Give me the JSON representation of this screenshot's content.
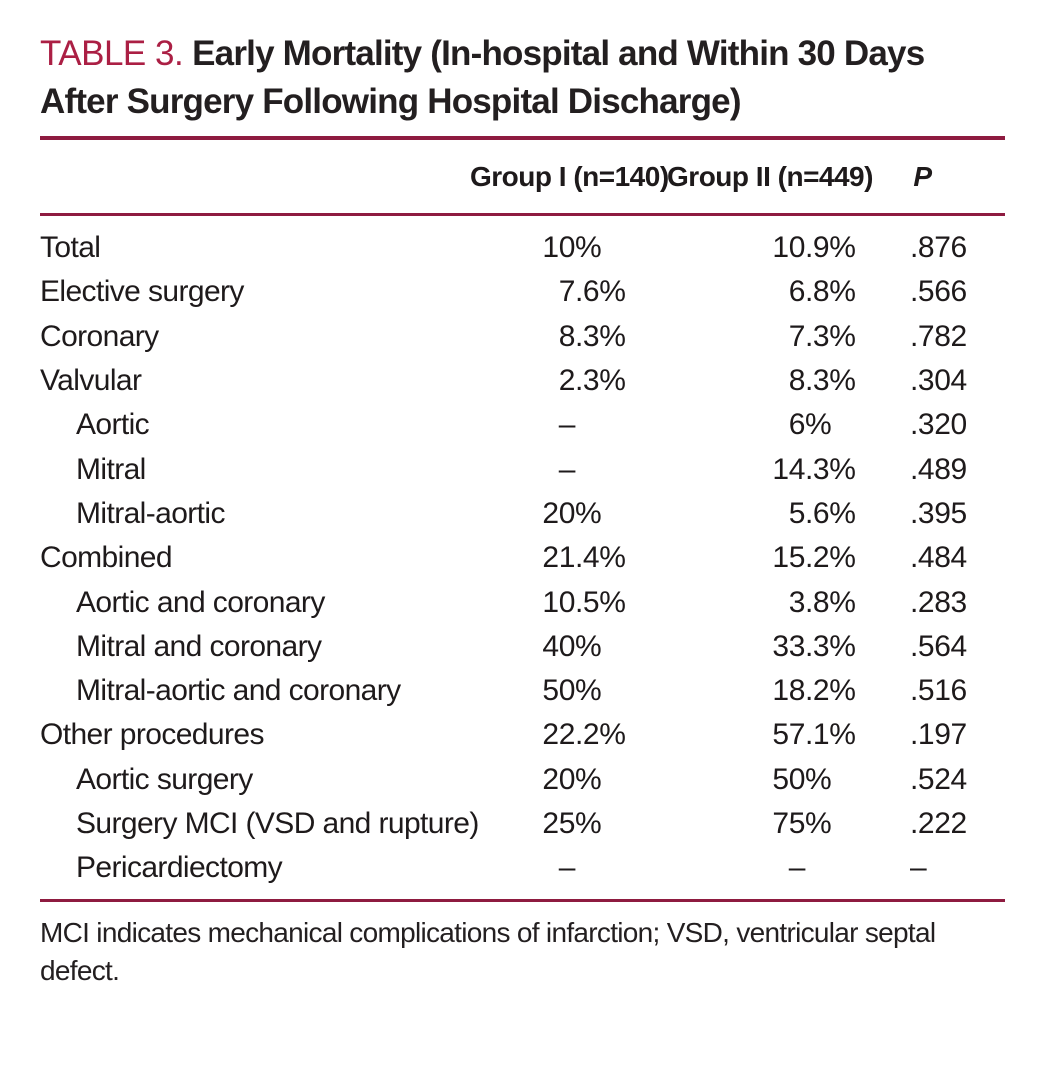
{
  "title": {
    "label": "TABLE 3.",
    "text": "Early Mortality (In-hospital and Within 30 Days After Surgery Following Hospital Discharge)"
  },
  "header": {
    "group1": "Group I (n=140)",
    "group2": "Group II (n=449)",
    "p": "P"
  },
  "rows": [
    {
      "label": "Total",
      "indent": false,
      "group1": "10%",
      "group2": "10.9%",
      "p": ".876"
    },
    {
      "label": "Elective surgery",
      "indent": false,
      "group1": "7.6%",
      "group2": "6.8%",
      "p": ".566"
    },
    {
      "label": "Coronary",
      "indent": false,
      "group1": "8.3%",
      "group2": "7.3%",
      "p": ".782"
    },
    {
      "label": "Valvular",
      "indent": false,
      "group1": "2.3%",
      "group2": "8.3%",
      "p": ".304"
    },
    {
      "label": "Aortic",
      "indent": true,
      "group1": "–",
      "group2": "6%",
      "p": ".320"
    },
    {
      "label": "Mitral",
      "indent": true,
      "group1": "–",
      "group2": "14.3%",
      "p": ".489"
    },
    {
      "label": "Mitral-aortic",
      "indent": true,
      "group1": "20%",
      "group2": "5.6%",
      "p": ".395"
    },
    {
      "label": "Combined",
      "indent": false,
      "group1": "21.4%",
      "group2": "15.2%",
      "p": ".484"
    },
    {
      "label": "Aortic and coronary",
      "indent": true,
      "group1": "10.5%",
      "group2": "3.8%",
      "p": ".283"
    },
    {
      "label": "Mitral and coronary",
      "indent": true,
      "group1": "40%",
      "group2": "33.3%",
      "p": ".564"
    },
    {
      "label": "Mitral-aortic and coronary",
      "indent": true,
      "group1": "50%",
      "group2": "18.2%",
      "p": ".516"
    },
    {
      "label": "Other procedures",
      "indent": false,
      "group1": "22.2%",
      "group2": "57.1%",
      "p": ".197"
    },
    {
      "label": "Aortic surgery",
      "indent": true,
      "group1": "20%",
      "group2": "50%",
      "p": ".524"
    },
    {
      "label": "Surgery MCI (VSD and rupture)",
      "indent": true,
      "group1": "25%",
      "group2": "75%",
      "p": ".222"
    },
    {
      "label": "Pericardiectomy",
      "indent": true,
      "group1": "–",
      "group2": "–",
      "p": "–"
    }
  ],
  "footnote": "MCI indicates mechanical complications of infarction; VSD, ventricular septal defect.",
  "colors": {
    "accent": "#ab1f44",
    "rule": "#8e1b40",
    "text": "#231f20"
  }
}
